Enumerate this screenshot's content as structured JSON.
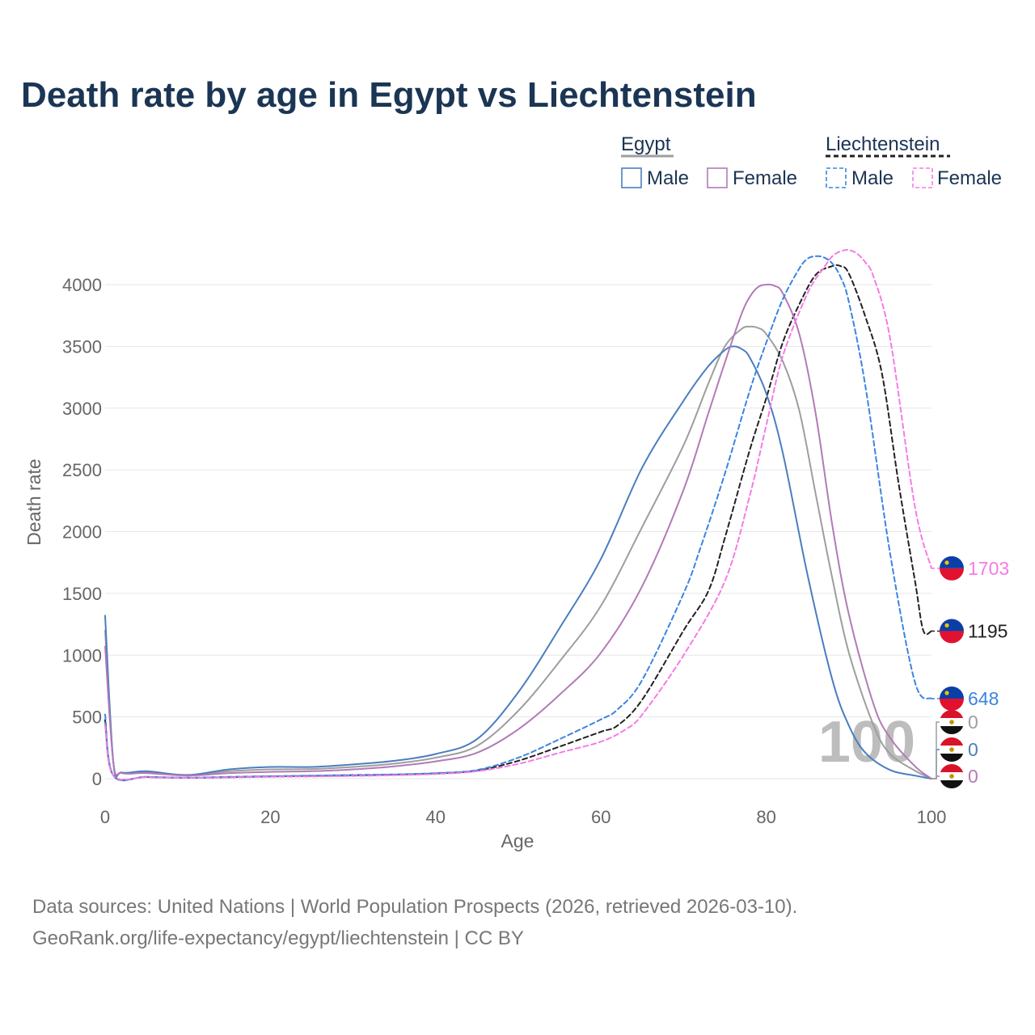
{
  "chart_data": {
    "type": "line",
    "title": "Death rate by age in Egypt vs Liechtenstein",
    "xlabel": "Age",
    "ylabel": "Death rate",
    "xlim": [
      0,
      100
    ],
    "ylim": [
      0,
      4300
    ],
    "xticks": [
      "0",
      "20",
      "40",
      "60",
      "80",
      "100"
    ],
    "yticks": [
      "0",
      "500",
      "1000",
      "1500",
      "2000",
      "2500",
      "3000",
      "3500",
      "4000"
    ],
    "watermark": "100",
    "legend": {
      "groups": [
        {
          "name": "Egypt",
          "items": [
            "Male",
            "Female"
          ]
        },
        {
          "name": "Liechtenstein",
          "items": [
            "Male",
            "Female"
          ]
        }
      ]
    },
    "series": [
      {
        "name": "Egypt Male",
        "country": "Egypt",
        "sex": "Male",
        "color": "#4a7ebf",
        "dashed": false,
        "end_label": "0",
        "x": [
          0,
          1,
          2,
          5,
          10,
          15,
          20,
          25,
          30,
          35,
          40,
          45,
          50,
          55,
          60,
          65,
          70,
          73,
          75,
          76,
          77,
          78,
          80,
          82,
          85,
          88,
          90,
          92,
          95,
          98,
          100
        ],
        "values": [
          1320,
          130,
          50,
          60,
          30,
          75,
          95,
          95,
          115,
          145,
          200,
          320,
          700,
          1220,
          1780,
          2520,
          3060,
          3340,
          3470,
          3500,
          3480,
          3410,
          3120,
          2640,
          1650,
          800,
          430,
          210,
          70,
          25,
          0
        ]
      },
      {
        "name": "Egypt Female",
        "country": "Egypt",
        "sex": "Female",
        "color": "#b27ab8",
        "dashed": false,
        "end_label": "0",
        "x": [
          0,
          1,
          2,
          5,
          10,
          15,
          20,
          25,
          30,
          35,
          40,
          45,
          50,
          55,
          60,
          65,
          70,
          73,
          75,
          77,
          78,
          79,
          80,
          81,
          82,
          84,
          86,
          88,
          90,
          93,
          95,
          98,
          100
        ],
        "values": [
          1070,
          130,
          45,
          45,
          25,
          45,
          55,
          60,
          75,
          100,
          140,
          210,
          400,
          680,
          1020,
          1560,
          2340,
          2960,
          3370,
          3760,
          3900,
          3980,
          4000,
          3990,
          3930,
          3600,
          2950,
          2050,
          1330,
          600,
          330,
          100,
          0
        ]
      },
      {
        "name": "Egypt Total",
        "country": "Egypt",
        "sex": "Total",
        "color": "#9e9e9e",
        "dashed": false,
        "end_label": "0",
        "x": [
          0,
          1,
          2,
          5,
          10,
          15,
          20,
          25,
          30,
          35,
          40,
          45,
          50,
          55,
          60,
          65,
          70,
          73,
          75,
          77,
          78,
          79,
          80,
          82,
          84,
          86,
          88,
          90,
          93,
          95,
          98,
          100
        ],
        "values": [
          1200,
          130,
          48,
          52,
          28,
          60,
          75,
          78,
          95,
          122,
          170,
          265,
          550,
          950,
          1400,
          2040,
          2700,
          3200,
          3500,
          3640,
          3660,
          3650,
          3600,
          3380,
          2980,
          2300,
          1620,
          1020,
          430,
          200,
          65,
          0
        ]
      },
      {
        "name": "Liechtenstein Male",
        "country": "Liechtenstein",
        "sex": "Male",
        "color": "#3c84e0",
        "dashed": true,
        "end_label": "648",
        "x": [
          0,
          1,
          5,
          10,
          15,
          20,
          25,
          30,
          35,
          40,
          45,
          50,
          55,
          60,
          62,
          65,
          70,
          72,
          75,
          78,
          80,
          82,
          84,
          85,
          86,
          87,
          88,
          89,
          90,
          92,
          95,
          98,
          100
        ],
        "values": [
          520,
          25,
          15,
          8,
          15,
          20,
          25,
          30,
          35,
          45,
          70,
          170,
          320,
          480,
          560,
          800,
          1500,
          1860,
          2470,
          3140,
          3530,
          3880,
          4130,
          4210,
          4230,
          4220,
          4170,
          4060,
          3860,
          3180,
          1820,
          780,
          648
        ]
      },
      {
        "name": "Liechtenstein Female",
        "country": "Liechtenstein",
        "sex": "Female",
        "color": "#f57be6",
        "dashed": true,
        "end_label": "1703",
        "x": [
          0,
          1,
          5,
          10,
          15,
          20,
          25,
          30,
          35,
          40,
          45,
          50,
          55,
          60,
          63,
          65,
          70,
          75,
          78,
          80,
          82,
          85,
          87,
          88,
          89,
          90,
          91,
          92,
          93,
          95,
          98,
          100
        ],
        "values": [
          430,
          25,
          12,
          6,
          10,
          15,
          18,
          22,
          28,
          38,
          60,
          120,
          210,
          300,
          400,
          520,
          1000,
          1600,
          2290,
          2860,
          3420,
          3930,
          4140,
          4230,
          4270,
          4280,
          4250,
          4180,
          4060,
          3560,
          2200,
          1703
        ]
      },
      {
        "name": "Liechtenstein Total",
        "country": "Liechtenstein",
        "sex": "Total",
        "color": "#222222",
        "dashed": true,
        "end_label": "1195",
        "x": [
          0,
          1,
          5,
          10,
          15,
          20,
          25,
          30,
          35,
          40,
          45,
          50,
          55,
          60,
          62,
          65,
          70,
          73,
          75,
          78,
          80,
          82,
          84,
          86,
          88,
          89,
          90,
          92,
          94,
          96,
          98,
          99,
          100
        ],
        "values": [
          475,
          25,
          14,
          7,
          12,
          18,
          22,
          26,
          32,
          42,
          65,
          145,
          260,
          380,
          430,
          640,
          1200,
          1520,
          1950,
          2660,
          3080,
          3530,
          3840,
          4080,
          4150,
          4150,
          4090,
          3740,
          3280,
          2400,
          1600,
          1200,
          1195
        ]
      }
    ]
  },
  "source": {
    "line1": "Data sources: United Nations | World Population Prospects (2026, retrieved 2026-03-10).",
    "line2": "GeoRank.org/life-expectancy/egypt/liechtenstein | CC BY"
  }
}
